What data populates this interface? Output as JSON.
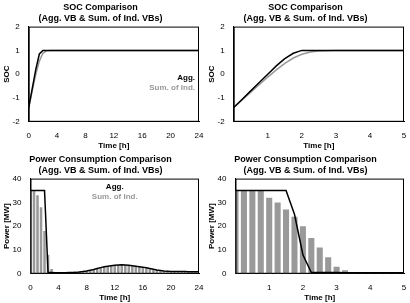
{
  "chart_data": [
    {
      "type": "line",
      "title": "SOC Comparison",
      "subtitle": "(Agg. VB & Sum. of Ind. VBs)",
      "x_label": "Time [h]",
      "y_label": "SOC",
      "x": [
        0,
        0.5,
        1,
        1.5,
        2,
        2.5,
        3,
        3.5,
        4,
        4.5,
        5,
        5.5,
        6,
        6.5,
        7,
        7.5,
        8,
        8.5,
        9,
        9.5,
        10,
        10.5,
        11,
        11.5,
        12,
        12.5,
        13,
        13.5,
        14,
        14.5,
        15,
        15.5,
        16,
        16.5,
        17,
        17.5,
        18,
        18.5,
        19,
        19.5,
        20,
        20.5,
        21,
        21.5,
        22,
        22.5,
        23,
        23.5,
        24
      ],
      "series": [
        {
          "name": "Agg.",
          "color": "#000000",
          "values": [
            -1.4,
            -0.6,
            0.2,
            0.85,
            1,
            1,
            1,
            1,
            1,
            1,
            1,
            1,
            1,
            1,
            1,
            1,
            1,
            1,
            1,
            1,
            1,
            1,
            1,
            1,
            1,
            1,
            1,
            1,
            1,
            1,
            1,
            1,
            1,
            1,
            1,
            1,
            1,
            1,
            1,
            1,
            1,
            1,
            1,
            1,
            1,
            1,
            1,
            1,
            1
          ]
        },
        {
          "name": "Sum. of Ind.",
          "color": "#999999",
          "values": [
            -1.4,
            -0.7,
            0,
            0.55,
            0.88,
            0.98,
            1,
            1,
            1,
            1,
            1,
            1,
            1,
            1,
            1,
            1,
            1,
            1,
            1,
            1,
            1,
            1,
            1,
            1,
            1,
            1,
            1,
            1,
            1,
            1,
            1,
            1,
            1,
            1,
            1,
            1,
            1,
            1,
            1,
            1,
            1,
            1,
            1,
            1,
            1,
            1,
            1,
            1,
            1
          ]
        }
      ],
      "xlim": [
        0,
        24
      ],
      "xticks": [
        0,
        4,
        8,
        12,
        16,
        20,
        24
      ],
      "ylim": [
        -2,
        2
      ],
      "yticks": [
        -2,
        -1,
        0,
        1,
        2
      ],
      "grid": false,
      "legend": "right"
    },
    {
      "type": "line",
      "title": "SOC Comparison",
      "subtitle": "(Agg. VB & Sum. of Ind. VBs)",
      "x_label": "Time [h]",
      "y_label": "SOC",
      "x": [
        0,
        0.25,
        0.5,
        0.75,
        1,
        1.25,
        1.5,
        1.75,
        2,
        2.25,
        2.5,
        2.75,
        3,
        3.25,
        3.5,
        3.75,
        4,
        4.25,
        4.5,
        4.75,
        5
      ],
      "series": [
        {
          "color": "#000000",
          "values": [
            -1.4,
            -1.05,
            -0.7,
            -0.35,
            0,
            0.35,
            0.65,
            0.88,
            1,
            1,
            1,
            1,
            1,
            1,
            1,
            1,
            1,
            1,
            1,
            1,
            1
          ]
        },
        {
          "color": "#999999",
          "values": [
            -1.4,
            -1.08,
            -0.76,
            -0.44,
            -0.12,
            0.18,
            0.45,
            0.68,
            0.84,
            0.93,
            0.97,
            0.99,
            1,
            1,
            1,
            1,
            1,
            1,
            1,
            1,
            1
          ]
        }
      ],
      "xlim": [
        0,
        5
      ],
      "xticks": [
        1,
        2,
        3,
        4,
        5
      ],
      "ylim": [
        -2,
        2
      ],
      "yticks": [
        -2,
        -1,
        0,
        1,
        2
      ],
      "grid": false
    },
    {
      "type": "bar",
      "title": "Power Consumption Comparison",
      "subtitle": "(Agg. VB & Sum. of Ind. VBs)",
      "x_label": "Time [h]",
      "y_label": "Power [MW]",
      "x": [
        0,
        0.5,
        1,
        1.5,
        2,
        2.5,
        3,
        3.5,
        4,
        4.5,
        5,
        5.5,
        6,
        6.5,
        7,
        7.5,
        8,
        8.5,
        9,
        9.5,
        10,
        10.5,
        11,
        11.5,
        12,
        12.5,
        13,
        13.5,
        14,
        14.5,
        15,
        15.5,
        16,
        16.5,
        17,
        17.5,
        18,
        18.5,
        19,
        19.5,
        20,
        20.5,
        21,
        21.5,
        22,
        22.5,
        23,
        23.5,
        24
      ],
      "series": [
        {
          "name": "Agg.",
          "color": "#000000",
          "type": "line",
          "values": [
            35,
            35,
            35,
            35,
            35,
            0.5,
            0.5,
            0.4,
            0.4,
            0.4,
            0.4,
            0.5,
            0.5,
            0.6,
            0.8,
            1,
            1.2,
            1.5,
            1.8,
            2.2,
            2.6,
            3,
            3.2,
            3.4,
            3.6,
            3.7,
            3.8,
            3.7,
            3.6,
            3.4,
            3.2,
            3,
            2.8,
            2.5,
            2.2,
            1.9,
            1.6,
            1.4,
            1.2,
            1.1,
            1,
            1,
            1,
            1,
            1,
            0.9,
            0.9,
            0.9,
            0.9
          ]
        },
        {
          "name": "Sum. of Ind.",
          "color": "#999999",
          "type": "bar",
          "values": [
            35,
            35,
            33,
            28,
            18,
            8,
            2,
            0.5,
            0.4,
            0.4,
            0.4,
            0.5,
            0.5,
            0.6,
            0.8,
            1,
            1.2,
            1.5,
            1.8,
            2.2,
            2.6,
            3,
            3.2,
            3.4,
            3.6,
            3.7,
            3.8,
            3.7,
            3.6,
            3.4,
            3.2,
            3,
            2.8,
            2.5,
            2.2,
            1.9,
            1.6,
            1.4,
            1.2,
            1.1,
            1,
            1,
            1,
            1,
            1,
            0.9,
            0.9,
            0.9,
            0.9
          ]
        }
      ],
      "xlim": [
        0,
        24
      ],
      "xticks": [
        0,
        4,
        8,
        12,
        16,
        20,
        24
      ],
      "ylim": [
        0,
        40
      ],
      "yticks": [
        0,
        10,
        20,
        30,
        40
      ],
      "grid": false,
      "legend": "upper center"
    },
    {
      "type": "bar",
      "title": "Power Consumption Comparison",
      "subtitle": "(Agg. VB & Sum. of Ind. VBs)",
      "x_label": "Time [h]",
      "y_label": "Power [MW]",
      "x": [
        0,
        0.25,
        0.5,
        0.75,
        1,
        1.25,
        1.5,
        1.75,
        2,
        2.25,
        2.5,
        2.75,
        3,
        3.25,
        3.5,
        3.75,
        4,
        4.25,
        4.5,
        4.75,
        5
      ],
      "series": [
        {
          "color": "#000000",
          "type": "line",
          "values": [
            35,
            35,
            35,
            35,
            35,
            35,
            35,
            25,
            8,
            0.5,
            0.5,
            0.5,
            0.5,
            0.4,
            0.4,
            0.4,
            0.4,
            0.4,
            0.4,
            0.4,
            0.4
          ]
        },
        {
          "color": "#999999",
          "type": "bar",
          "values": [
            35,
            35,
            35,
            35,
            32,
            30,
            27,
            24,
            20,
            15,
            11,
            7,
            3,
            1.5,
            0.5,
            0.4,
            0.4,
            0.4,
            0.4,
            0.4,
            0.4
          ]
        }
      ],
      "xlim": [
        0,
        5
      ],
      "xticks": [
        1,
        2,
        3,
        4,
        5
      ],
      "ylim": [
        0,
        40
      ],
      "yticks": [
        0,
        10,
        20,
        30,
        40
      ],
      "grid": false
    }
  ]
}
